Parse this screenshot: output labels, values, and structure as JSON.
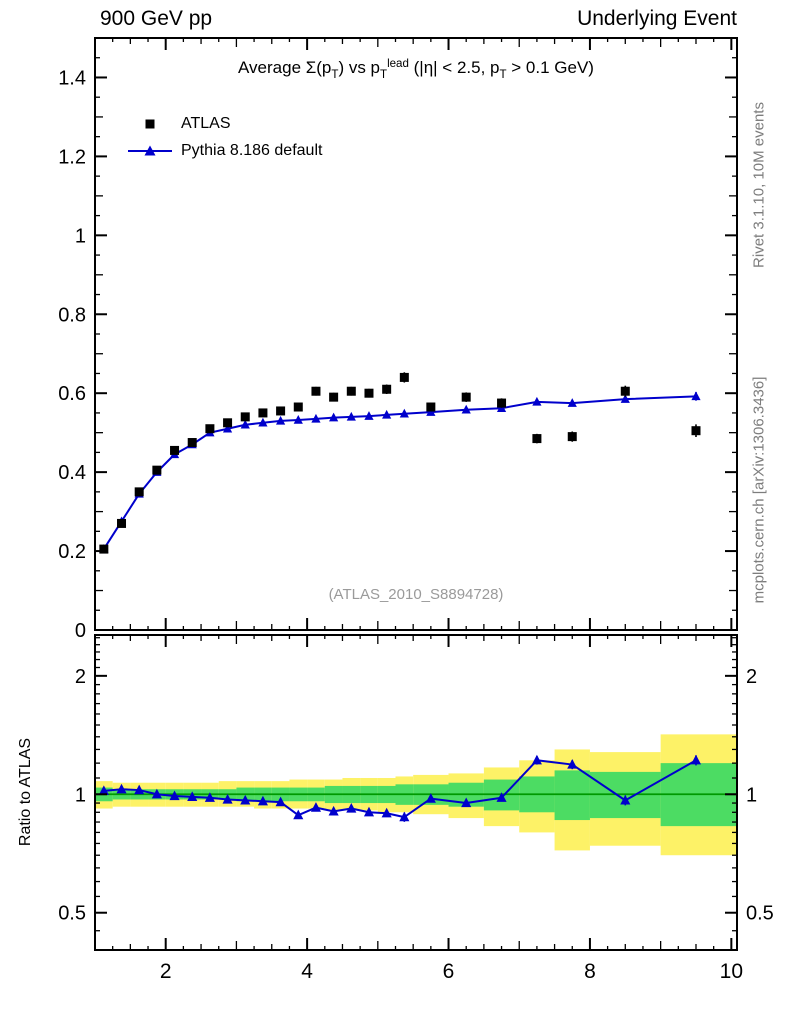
{
  "header": {
    "left": "900 GeV pp",
    "right": "Underlying Event"
  },
  "title_segments": [
    {
      "t": "Average "
    },
    {
      "t": "Σ(p"
    },
    {
      "t": "T",
      "s": "sub"
    },
    {
      "t": ") vs p"
    },
    {
      "t": "T",
      "s": "sub"
    },
    {
      "t": "lead",
      "s": "sup"
    },
    {
      "t": " (|η| < 2.5, p"
    },
    {
      "t": "T",
      "s": "sub"
    },
    {
      "t": " > 0.1 GeV)"
    }
  ],
  "watermark": "(ATLAS_2010_S8894728)",
  "side_notes": {
    "top": "Rivet 3.1.10,  10M events",
    "bottom": "mcplots.cern.ch [arXiv:1306.3436]"
  },
  "ratio_label": "Ratio to ATLAS",
  "colors": {
    "atlas": "#000000",
    "pythia": "#0000cc",
    "band_yellow": "#fdf267",
    "band_green": "#4cdc63",
    "ref_line": "#009900",
    "frame": "#000000",
    "gray_text": "#7d7d7d"
  },
  "chart_data": {
    "type": "line",
    "title": "Average Σ(p_T) vs p_T^lead (|η| < 2.5, p_T > 0.1 GeV)",
    "xlabel": "",
    "ylabel": "",
    "xlim": [
      1.0,
      10.08
    ],
    "ylim_main": [
      0.0,
      1.5
    ],
    "ylim_ratio": [
      0.402,
      2.54
    ],
    "ratio_scale": "log",
    "x": [
      1.125,
      1.375,
      1.625,
      1.875,
      2.125,
      2.375,
      2.625,
      2.875,
      3.125,
      3.375,
      3.625,
      3.875,
      4.125,
      4.375,
      4.625,
      4.875,
      5.125,
      5.375,
      5.75,
      6.25,
      6.75,
      7.25,
      7.75,
      8.5,
      9.5
    ],
    "series": [
      {
        "name": "ATLAS",
        "type": "scatter",
        "marker": "square",
        "color": "#000000",
        "values": [
          0.205,
          0.27,
          0.35,
          0.405,
          0.455,
          0.475,
          0.51,
          0.525,
          0.54,
          0.55,
          0.555,
          0.565,
          0.605,
          0.59,
          0.605,
          0.6,
          0.61,
          0.64,
          0.565,
          0.59,
          0.575,
          0.485,
          0.49,
          0.605,
          0.505
        ],
        "errors": [
          0.008,
          0.008,
          0.008,
          0.008,
          0.009,
          0.009,
          0.009,
          0.009,
          0.01,
          0.01,
          0.01,
          0.01,
          0.011,
          0.011,
          0.011,
          0.011,
          0.012,
          0.013,
          0.011,
          0.012,
          0.012,
          0.012,
          0.013,
          0.014,
          0.016
        ]
      },
      {
        "name": "Pythia 8.186 default",
        "type": "line+marker",
        "marker": "triangle",
        "color": "#0000cc",
        "values": [
          0.205,
          0.275,
          0.345,
          0.4,
          0.445,
          0.47,
          0.5,
          0.51,
          0.52,
          0.525,
          0.53,
          0.532,
          0.535,
          0.538,
          0.54,
          0.542,
          0.545,
          0.548,
          0.552,
          0.558,
          0.562,
          0.578,
          0.575,
          0.585,
          0.592
        ],
        "errors": [
          0.002,
          0.002,
          0.002,
          0.002,
          0.002,
          0.003,
          0.003,
          0.003,
          0.003,
          0.003,
          0.003,
          0.004,
          0.004,
          0.004,
          0.004,
          0.004,
          0.005,
          0.005,
          0.004,
          0.005,
          0.006,
          0.007,
          0.008,
          0.008,
          0.011
        ]
      }
    ],
    "ratio": {
      "name": "Pythia 8.186 default / ATLAS",
      "values": [
        1.02,
        1.03,
        1.025,
        1.0,
        0.99,
        0.985,
        0.98,
        0.97,
        0.965,
        0.96,
        0.955,
        0.885,
        0.925,
        0.905,
        0.92,
        0.9,
        0.895,
        0.875,
        0.975,
        0.95,
        0.98,
        1.22,
        1.19,
        0.965,
        1.22
      ],
      "errors": [
        0.012,
        0.012,
        0.012,
        0.012,
        0.012,
        0.012,
        0.012,
        0.012,
        0.013,
        0.013,
        0.013,
        0.014,
        0.015,
        0.015,
        0.015,
        0.016,
        0.017,
        0.024,
        0.016,
        0.018,
        0.02,
        0.03,
        0.032,
        0.028,
        0.036
      ]
    },
    "bands": {
      "bin_edges": [
        1.0,
        1.25,
        1.5,
        1.75,
        2.0,
        2.25,
        2.5,
        2.75,
        3.0,
        3.25,
        3.5,
        3.75,
        4.0,
        4.25,
        4.5,
        4.75,
        5.0,
        5.25,
        5.5,
        6.0,
        6.5,
        7.0,
        7.5,
        8.0,
        9.0,
        10.0
      ],
      "yellow": [
        [
          0.92,
          1.08
        ],
        [
          0.93,
          1.07
        ],
        [
          0.93,
          1.07
        ],
        [
          0.93,
          1.07
        ],
        [
          0.93,
          1.07
        ],
        [
          0.93,
          1.07
        ],
        [
          0.93,
          1.07
        ],
        [
          0.93,
          1.08
        ],
        [
          0.93,
          1.08
        ],
        [
          0.92,
          1.08
        ],
        [
          0.92,
          1.08
        ],
        [
          0.92,
          1.09
        ],
        [
          0.92,
          1.09
        ],
        [
          0.91,
          1.09
        ],
        [
          0.91,
          1.1
        ],
        [
          0.91,
          1.1
        ],
        [
          0.9,
          1.1
        ],
        [
          0.9,
          1.11
        ],
        [
          0.89,
          1.12
        ],
        [
          0.87,
          1.13
        ],
        [
          0.83,
          1.17
        ],
        [
          0.8,
          1.22
        ],
        [
          0.72,
          1.3
        ],
        [
          0.74,
          1.28
        ],
        [
          0.7,
          1.42
        ]
      ],
      "green": [
        [
          0.96,
          1.04
        ],
        [
          0.97,
          1.03
        ],
        [
          0.97,
          1.03
        ],
        [
          0.97,
          1.03
        ],
        [
          0.97,
          1.03
        ],
        [
          0.97,
          1.03
        ],
        [
          0.97,
          1.03
        ],
        [
          0.97,
          1.03
        ],
        [
          0.96,
          1.04
        ],
        [
          0.96,
          1.04
        ],
        [
          0.96,
          1.04
        ],
        [
          0.96,
          1.04
        ],
        [
          0.96,
          1.04
        ],
        [
          0.95,
          1.05
        ],
        [
          0.95,
          1.05
        ],
        [
          0.95,
          1.05
        ],
        [
          0.95,
          1.05
        ],
        [
          0.94,
          1.06
        ],
        [
          0.94,
          1.06
        ],
        [
          0.93,
          1.07
        ],
        [
          0.91,
          1.09
        ],
        [
          0.9,
          1.11
        ],
        [
          0.86,
          1.15
        ],
        [
          0.87,
          1.14
        ],
        [
          0.83,
          1.2
        ]
      ]
    },
    "axes": {
      "x_major": [
        2,
        4,
        6,
        8,
        10
      ],
      "x_labels": [
        "2",
        "4",
        "6",
        "8",
        "10"
      ],
      "y_main_major": [
        0,
        0.2,
        0.4,
        0.6,
        0.8,
        1,
        1.2,
        1.4
      ],
      "y_main_labels": [
        "0",
        "0.2",
        "0.4",
        "0.6",
        "0.8",
        "1",
        "1.2",
        "1.4"
      ],
      "ratio_major": [
        0.5,
        1,
        2
      ],
      "ratio_labels": [
        "0.5",
        "1",
        "2"
      ],
      "grid": false,
      "legend_position": "top-left-inside"
    }
  }
}
